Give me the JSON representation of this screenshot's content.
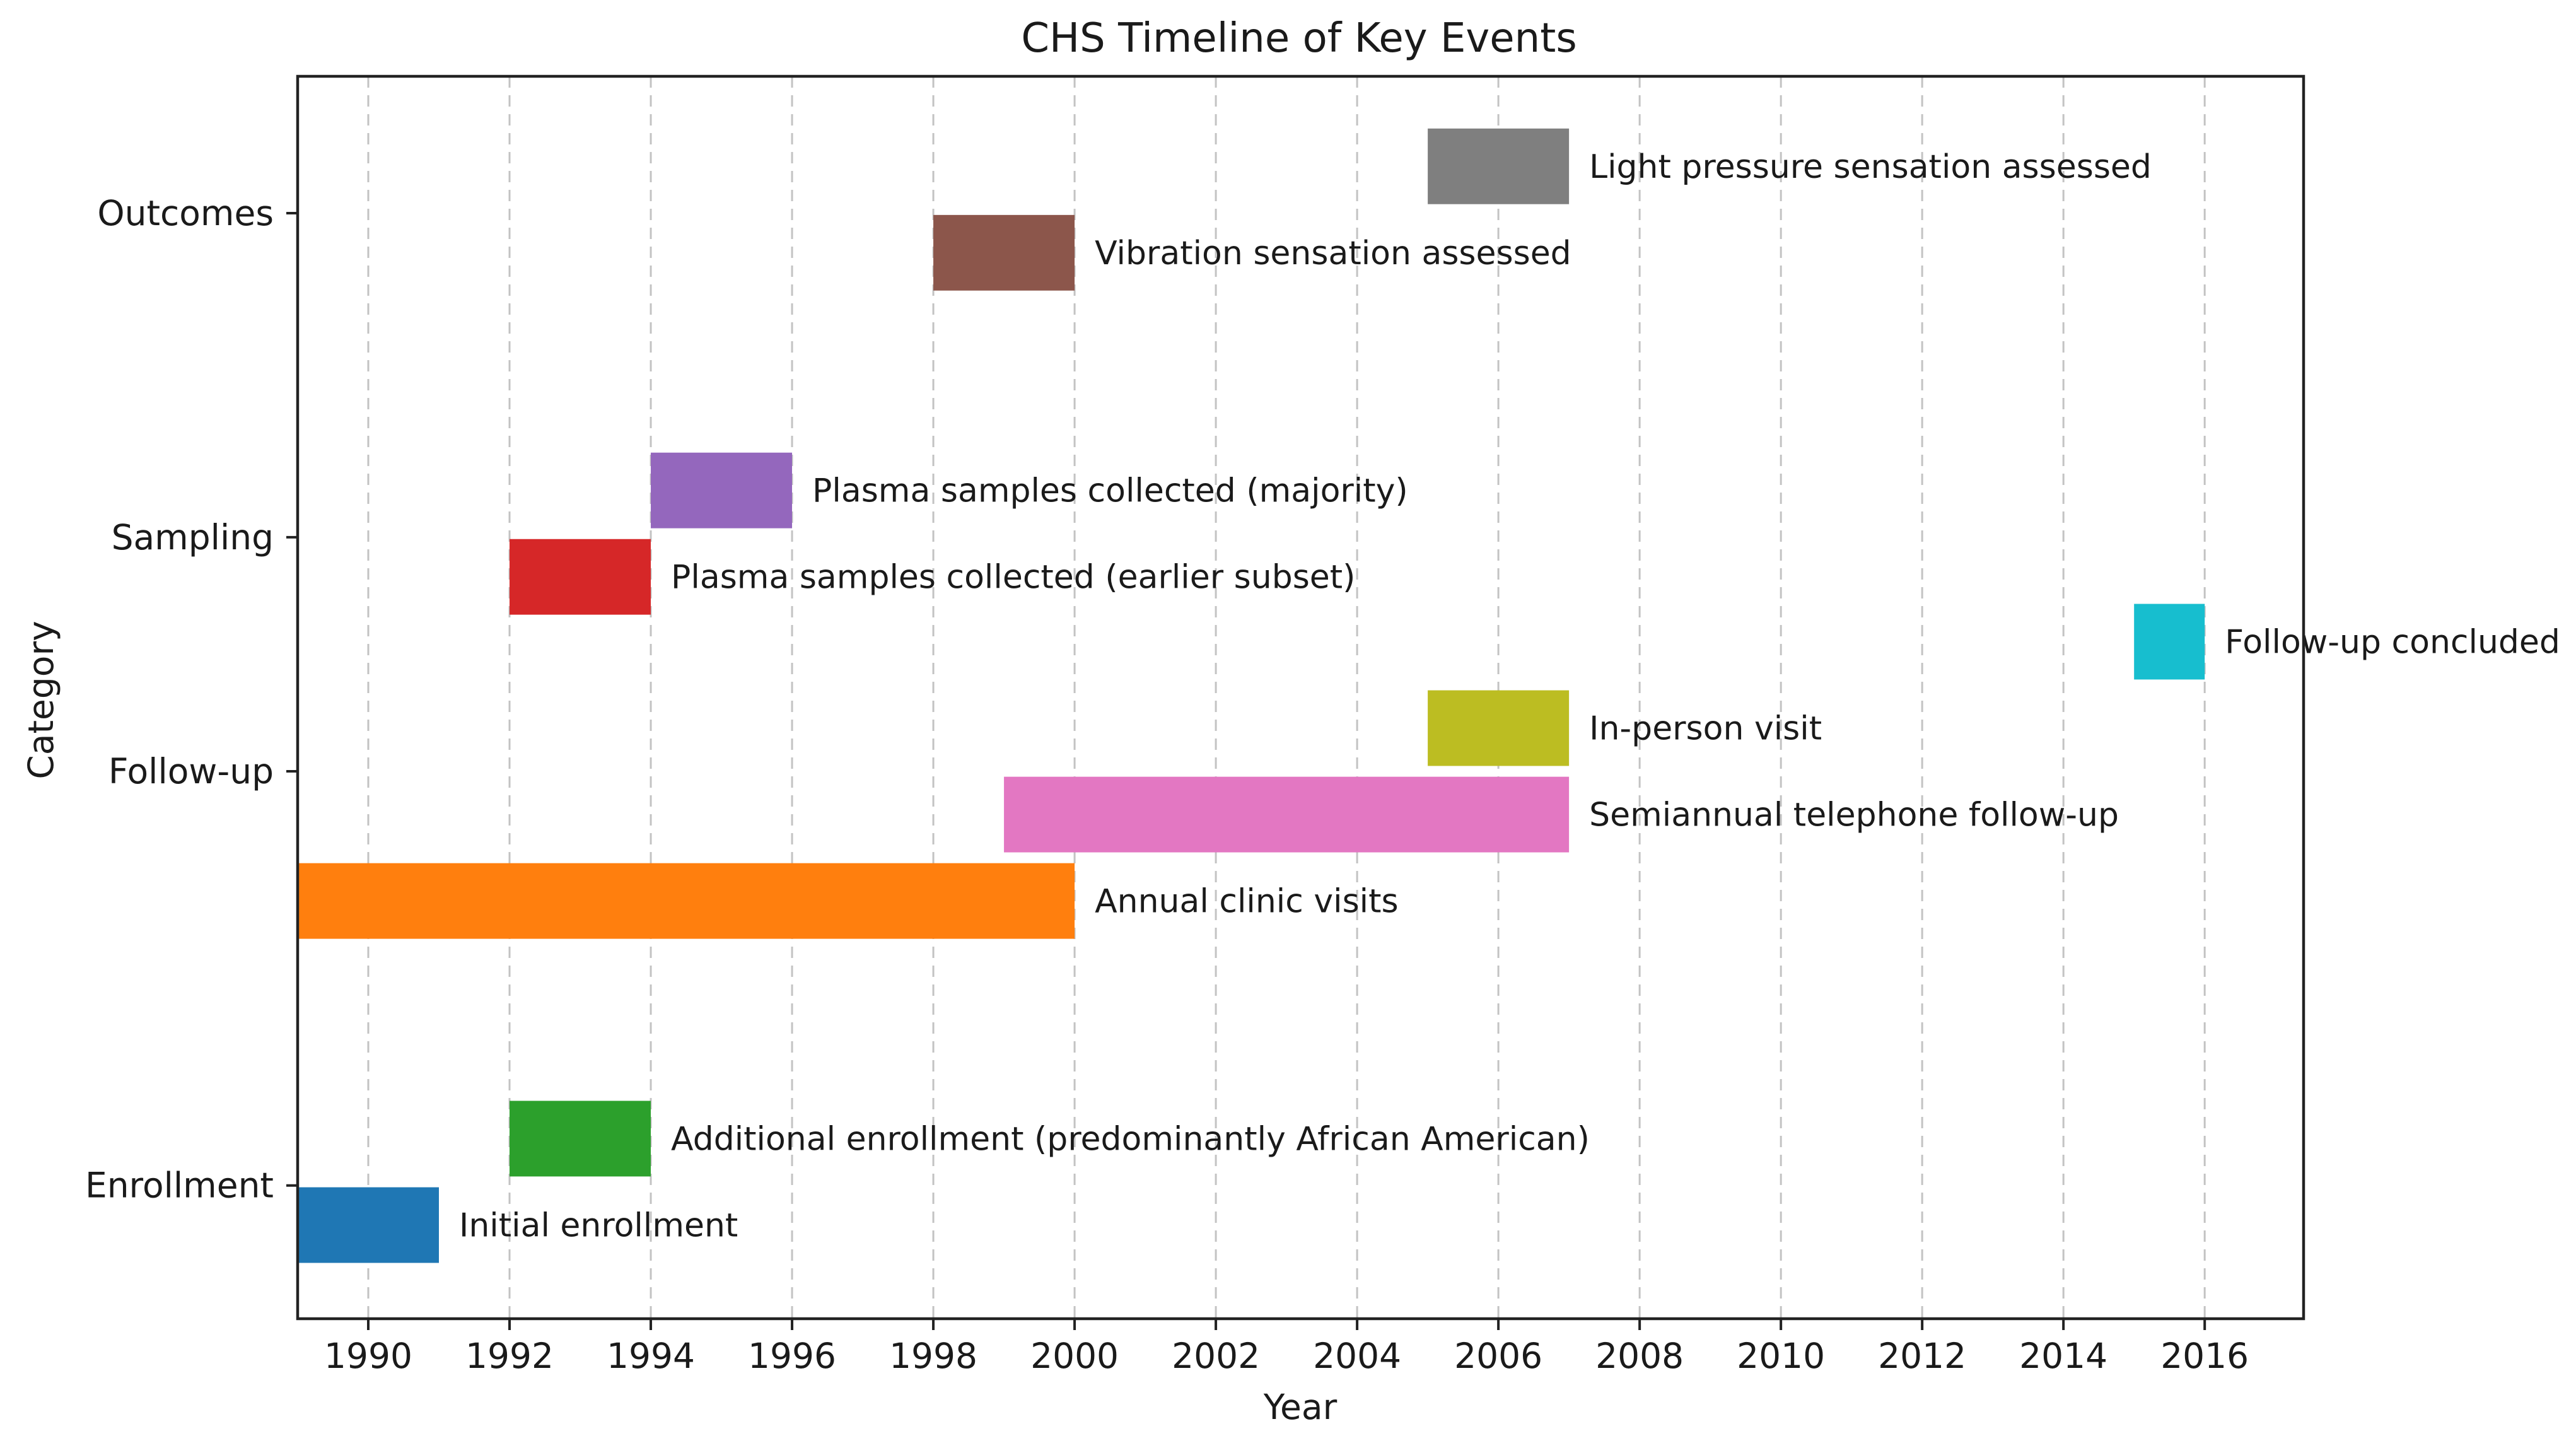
{
  "chart_data": {
    "type": "timeline",
    "title": "CHS Timeline of Key Events",
    "xlabel": "Year",
    "ylabel": "Category",
    "xlim": [
      1989,
      2017.4
    ],
    "xticks": [
      1990,
      1992,
      1994,
      1996,
      1998,
      2000,
      2002,
      2004,
      2006,
      2008,
      2010,
      2012,
      2014,
      2016
    ],
    "grid": "vertical dashed",
    "categories": [
      {
        "name": "Outcomes",
        "y": 3.55
      },
      {
        "name": "Sampling",
        "y": 2.65
      },
      {
        "name": "Follow-up",
        "y": 2.0
      },
      {
        "name": "Enrollment",
        "y": 0.85
      }
    ],
    "ylim": [
      0.48,
      3.93
    ],
    "events": [
      {
        "label": "Initial enrollment",
        "start": 1989,
        "end": 1991,
        "y": 0.74,
        "color": "#1f77b4"
      },
      {
        "label": "Additional enrollment (predominantly African American)",
        "start": 1992,
        "end": 1994,
        "y": 0.98,
        "color": "#2ca02c"
      },
      {
        "label": "Annual clinic visits",
        "start": 1989,
        "end": 2000,
        "y": 1.64,
        "color": "#ff7f0e"
      },
      {
        "label": "Semiannual telephone follow-up",
        "start": 1999,
        "end": 2007,
        "y": 1.88,
        "color": "#e377c2"
      },
      {
        "label": "In-person visit",
        "start": 2005,
        "end": 2007,
        "y": 2.12,
        "color": "#bcbd22"
      },
      {
        "label": "Follow-up concluded",
        "start": 2015,
        "end": 2016,
        "y": 2.36,
        "color": "#17becf"
      },
      {
        "label": "Plasma samples collected (earlier subset)",
        "start": 1992,
        "end": 1994,
        "y": 2.54,
        "color": "#d62728"
      },
      {
        "label": "Plasma samples collected (majority)",
        "start": 1994,
        "end": 1996,
        "y": 2.78,
        "color": "#9467bd"
      },
      {
        "label": "Vibration sensation assessed",
        "start": 1998,
        "end": 2000,
        "y": 3.44,
        "color": "#8c564b"
      },
      {
        "label": "Light pressure sensation assessed",
        "start": 2005,
        "end": 2007,
        "y": 3.68,
        "color": "#7f7f7f"
      }
    ],
    "bar_height": 0.21
  }
}
